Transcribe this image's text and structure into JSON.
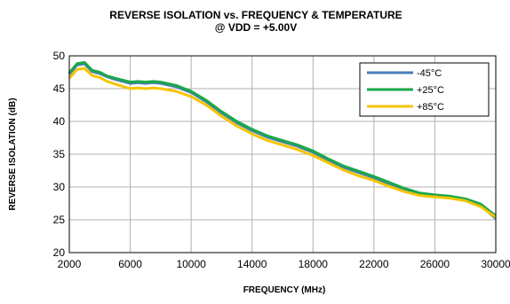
{
  "chart_data": {
    "type": "line",
    "title": "REVERSE ISOLATION vs. FREQUENCY & TEMPERATURE",
    "subtitle": "@ VDD = +5.00V",
    "xlabel": "FREQUENCY (MHz)",
    "ylabel": "REVERSE ISOLATION (dB)",
    "xlim": [
      2000,
      30000
    ],
    "ylim": [
      20,
      50
    ],
    "xticks": [
      2000,
      6000,
      10000,
      14000,
      18000,
      22000,
      26000,
      30000
    ],
    "yticks": [
      20,
      25,
      30,
      35,
      40,
      45,
      50
    ],
    "grid": true,
    "legend_position": "top-right",
    "series": [
      {
        "name": "-45°C",
        "color": "#4a7eb5",
        "points": [
          [
            2000,
            47.2
          ],
          [
            2500,
            48.6
          ],
          [
            3000,
            48.8
          ],
          [
            3500,
            47.6
          ],
          [
            4000,
            47.3
          ],
          [
            4500,
            46.8
          ],
          [
            5000,
            46.4
          ],
          [
            6000,
            45.8
          ],
          [
            6500,
            45.9
          ],
          [
            7000,
            45.8
          ],
          [
            7500,
            45.9
          ],
          [
            8000,
            45.8
          ],
          [
            9000,
            45.3
          ],
          [
            10000,
            44.4
          ],
          [
            11000,
            43.0
          ],
          [
            12000,
            41.3
          ],
          [
            13000,
            39.8
          ],
          [
            14000,
            38.6
          ],
          [
            15000,
            37.6
          ],
          [
            16000,
            36.9
          ],
          [
            17000,
            36.2
          ],
          [
            18000,
            35.3
          ],
          [
            19000,
            34.1
          ],
          [
            20000,
            33.0
          ],
          [
            21000,
            32.2
          ],
          [
            22000,
            31.4
          ],
          [
            23000,
            30.5
          ],
          [
            24000,
            29.7
          ],
          [
            25000,
            29.0
          ],
          [
            26000,
            28.7
          ],
          [
            27000,
            28.5
          ],
          [
            28000,
            28.0
          ],
          [
            29000,
            27.2
          ],
          [
            30000,
            25.2
          ]
        ]
      },
      {
        "name": "+25°C",
        "color": "#1aa84a",
        "points": [
          [
            2000,
            47.4
          ],
          [
            2500,
            48.8
          ],
          [
            3000,
            49.0
          ],
          [
            3500,
            47.8
          ],
          [
            4000,
            47.5
          ],
          [
            4500,
            46.9
          ],
          [
            5000,
            46.6
          ],
          [
            6000,
            46.0
          ],
          [
            6500,
            46.1
          ],
          [
            7000,
            46.0
          ],
          [
            7500,
            46.1
          ],
          [
            8000,
            46.0
          ],
          [
            9000,
            45.5
          ],
          [
            10000,
            44.6
          ],
          [
            11000,
            43.2
          ],
          [
            12000,
            41.5
          ],
          [
            13000,
            40.0
          ],
          [
            14000,
            38.8
          ],
          [
            15000,
            37.8
          ],
          [
            16000,
            37.1
          ],
          [
            17000,
            36.4
          ],
          [
            18000,
            35.5
          ],
          [
            19000,
            34.3
          ],
          [
            20000,
            33.2
          ],
          [
            21000,
            32.4
          ],
          [
            22000,
            31.6
          ],
          [
            23000,
            30.7
          ],
          [
            24000,
            29.8
          ],
          [
            25000,
            29.1
          ],
          [
            26000,
            28.8
          ],
          [
            27000,
            28.6
          ],
          [
            28000,
            28.2
          ],
          [
            29000,
            27.4
          ],
          [
            30000,
            25.6
          ]
        ]
      },
      {
        "name": "+85°C",
        "color": "#f5c400",
        "points": [
          [
            2000,
            46.6
          ],
          [
            2500,
            47.9
          ],
          [
            3000,
            48.1
          ],
          [
            3500,
            47.0
          ],
          [
            4000,
            46.7
          ],
          [
            4500,
            46.1
          ],
          [
            5000,
            45.7
          ],
          [
            6000,
            45.0
          ],
          [
            6500,
            45.1
          ],
          [
            7000,
            45.0
          ],
          [
            7500,
            45.1
          ],
          [
            8000,
            45.0
          ],
          [
            9000,
            44.6
          ],
          [
            10000,
            43.8
          ],
          [
            11000,
            42.5
          ],
          [
            12000,
            40.8
          ],
          [
            13000,
            39.3
          ],
          [
            14000,
            38.1
          ],
          [
            15000,
            37.1
          ],
          [
            16000,
            36.4
          ],
          [
            17000,
            35.7
          ],
          [
            18000,
            34.8
          ],
          [
            19000,
            33.7
          ],
          [
            20000,
            32.6
          ],
          [
            21000,
            31.7
          ],
          [
            22000,
            31.0
          ],
          [
            23000,
            30.1
          ],
          [
            24000,
            29.3
          ],
          [
            25000,
            28.7
          ],
          [
            26000,
            28.5
          ],
          [
            27000,
            28.3
          ],
          [
            28000,
            27.9
          ],
          [
            29000,
            27.0
          ],
          [
            30000,
            25.4
          ]
        ]
      }
    ]
  }
}
